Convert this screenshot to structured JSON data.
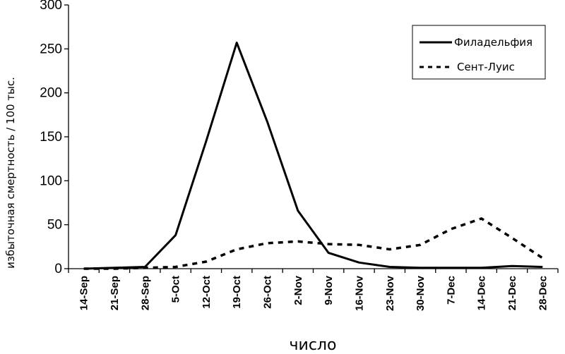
{
  "chart_data": {
    "type": "line",
    "title": "",
    "xlabel": "число",
    "ylabel": "избыточная смертность / 100 тыс.",
    "categories": [
      "14-Sep",
      "21-Sep",
      "28-Sep",
      "5-Oct",
      "12-Oct",
      "19-Oct",
      "26-Oct",
      "2-Nov",
      "9-Nov",
      "16-Nov",
      "23-Nov",
      "30-Nov",
      "7-Dec",
      "14-Dec",
      "21-Dec",
      "28-Dec"
    ],
    "series": [
      {
        "name": "Филадельфия",
        "style": "solid",
        "color": "#000000",
        "values": [
          0,
          1,
          2,
          38,
          145,
          257,
          167,
          66,
          18,
          7,
          2,
          1,
          1,
          1,
          3,
          2
        ]
      },
      {
        "name": "Сент-Луис",
        "style": "dashed",
        "color": "#000000",
        "values": [
          0,
          0,
          1,
          2,
          8,
          22,
          29,
          31,
          28,
          27,
          22,
          27,
          45,
          57,
          35,
          12
        ]
      }
    ],
    "ylim": [
      0,
      300
    ],
    "yticks": [
      0,
      50,
      100,
      150,
      200,
      250,
      300
    ],
    "grid": false,
    "legend_position": "top-right"
  }
}
